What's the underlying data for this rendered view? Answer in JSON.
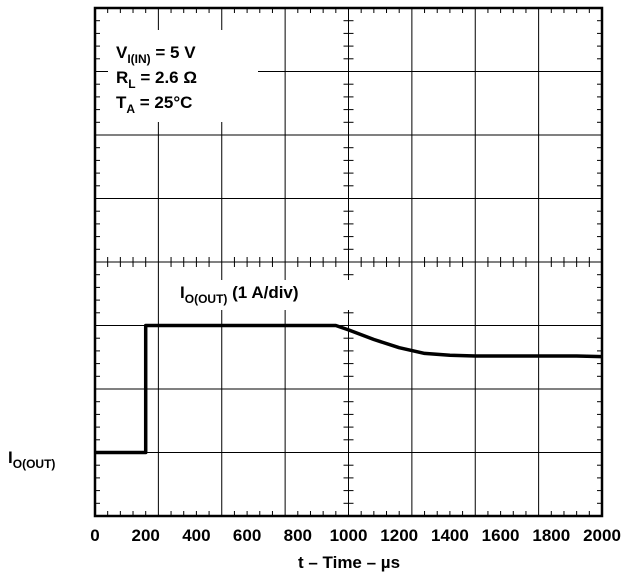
{
  "chart_data": {
    "type": "line",
    "x_tick_labels": [
      "0",
      "200",
      "400",
      "600",
      "800",
      "1000",
      "1200",
      "1400",
      "1600",
      "1800",
      "2000"
    ],
    "xlabel": {
      "main": "t – Time – ",
      "unit": "µs"
    },
    "xlim": [
      0,
      2000
    ],
    "grid": true,
    "conditions": [
      {
        "main": "V",
        "sub": "I(IN)",
        "rest": " = 5 V"
      },
      {
        "main": "R",
        "sub": "L",
        "rest": " = 2.6 Ω"
      },
      {
        "main": "T",
        "sub": "A",
        "rest": " = 25°C"
      }
    ],
    "trace_label": {
      "main": "I",
      "sub": "O(OUT)",
      "rest": " (1 A/div)"
    },
    "ylabel": {
      "main": "I",
      "sub": "O(OUT)"
    },
    "y_unit": "A",
    "y_reference_level": 0,
    "series": [
      {
        "x": [
          0,
          200,
          200,
          400,
          600,
          800,
          950,
          1000,
          1100,
          1200,
          1300,
          1400,
          1500,
          1600,
          1700,
          1800,
          1900,
          2000
        ],
        "y": [
          0,
          0,
          2.0,
          2.0,
          2.0,
          2.0,
          2.0,
          1.93,
          1.78,
          1.65,
          1.56,
          1.53,
          1.52,
          1.52,
          1.52,
          1.52,
          1.52,
          1.51
        ]
      }
    ]
  }
}
